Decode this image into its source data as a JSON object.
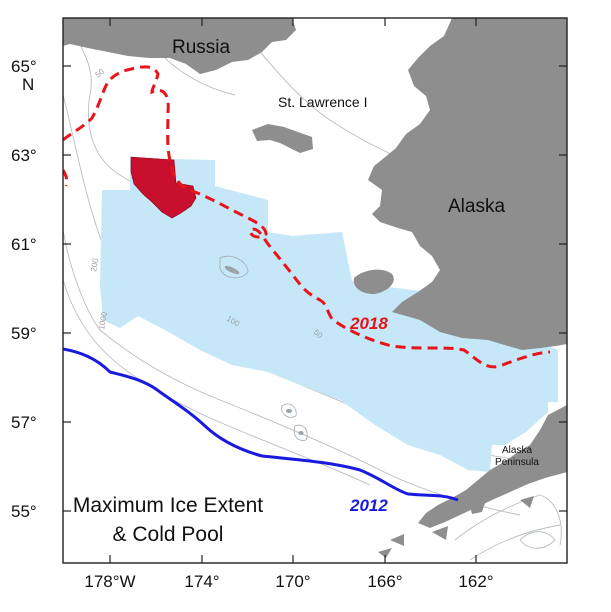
{
  "axes": {
    "lat_ticks": [
      "65°",
      "63°",
      "61°",
      "59°",
      "57°",
      "55°"
    ],
    "lat_unit": "N",
    "lon_ticks": [
      "178°W",
      "174°",
      "170°",
      "166°",
      "162°"
    ]
  },
  "places": {
    "russia": "Russia",
    "alaska": "Alaska",
    "st_lawrence": "St. Lawrence I",
    "alaska_peninsula_line1": "Alaska",
    "alaska_peninsula_line2": "Peninsula"
  },
  "series": {
    "ice_2018": {
      "label": "2018",
      "color": "#e8141b"
    },
    "ice_2012": {
      "label": "2012",
      "color": "#1a1adf"
    }
  },
  "contours": {
    "c50": "50",
    "c100": "100",
    "c200": "200",
    "c1000": "1000"
  },
  "legend": {
    "line1": "Maximum Ice Extent",
    "line2": "& Cold Pool"
  },
  "colors": {
    "land": "#8e8e8e",
    "cold_pool": "#c5e7f7",
    "cold_core": "#c8102e",
    "contour": "#b9bdc2"
  }
}
